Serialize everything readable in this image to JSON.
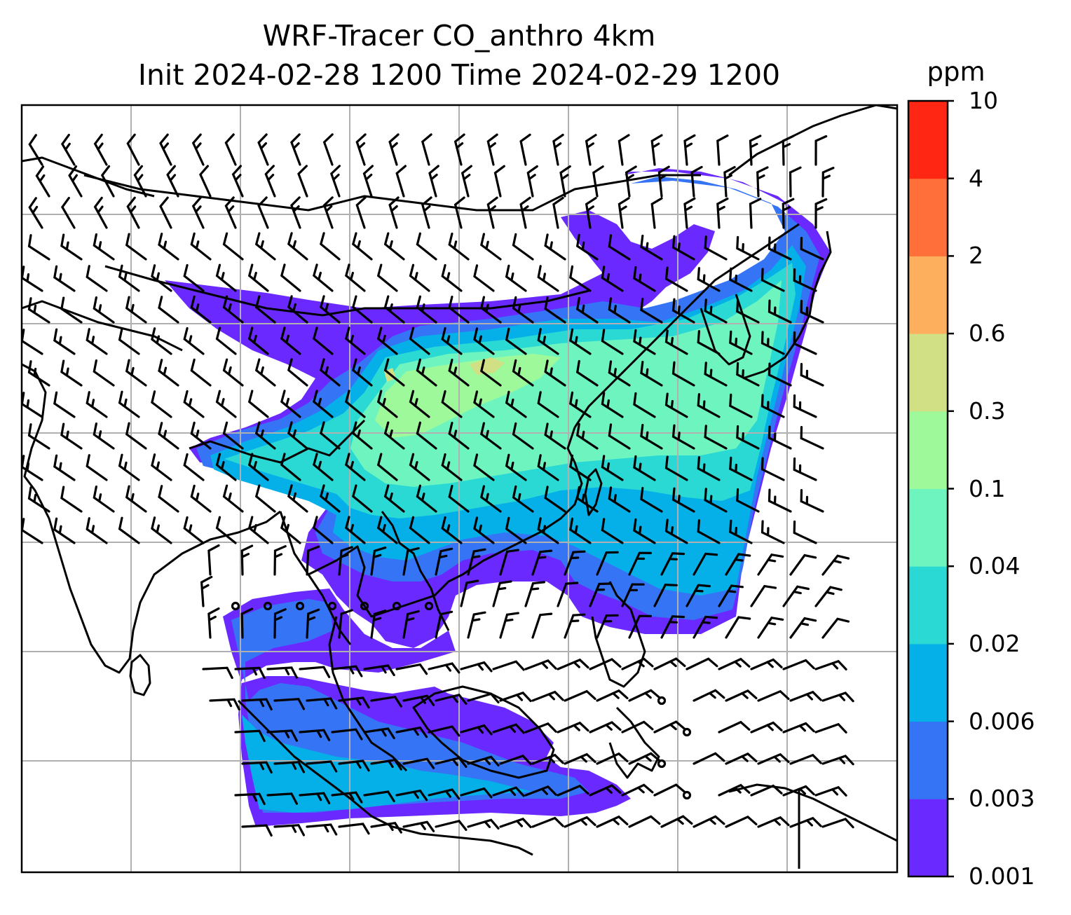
{
  "title": {
    "line1": "WRF-Tracer CO_anthro 4km",
    "line2": "Init 2024-02-28 1200 Time 2024-02-29 1200"
  },
  "colorbar": {
    "unit": "ppm",
    "levels": [
      "0.001",
      "0.003",
      "0.006",
      "0.02",
      "0.04",
      "0.1",
      "0.3",
      "0.6",
      "2",
      "4",
      "10"
    ],
    "colors": [
      "#6a2aff",
      "#3575f5",
      "#05b0e8",
      "#2bd9d4",
      "#6ef5bf",
      "#9ef99a",
      "#d1e084",
      "#fdaf5e",
      "#fe6f3a",
      "#ff2613"
    ]
  },
  "map": {
    "gridlines": true,
    "gridline_color": "#b0b0b0",
    "coastline_color": "#000000",
    "wind_barbs": true,
    "tracer_field": "CO_anthro"
  }
}
